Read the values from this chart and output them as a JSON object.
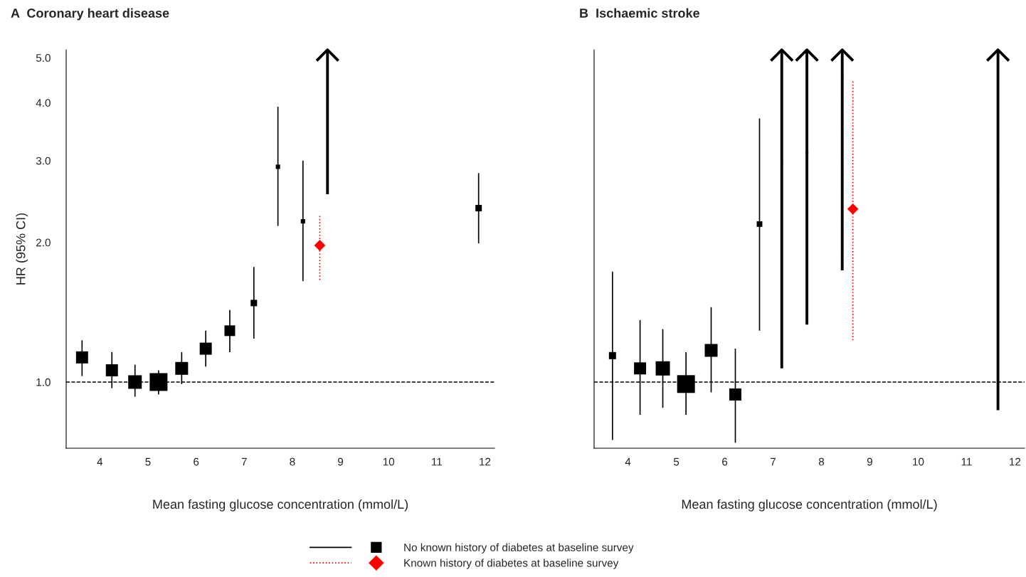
{
  "chart_data": [
    {
      "type": "scatter",
      "title": "A  Coronary heart disease",
      "xlabel": "Mean fasting glucose concentration (mmol/L)",
      "ylabel": "HR (95% CI)",
      "log": "y",
      "xlim": [
        3.3,
        12.2
      ],
      "xticks": [
        4,
        5,
        6,
        7,
        8,
        9,
        10,
        11,
        12
      ],
      "ylim": [
        0.72,
        5.2
      ],
      "yticks": [
        {
          "value": 1,
          "label": "1.0"
        },
        {
          "value": 2,
          "label": "2.0"
        },
        {
          "value": 3,
          "label": "3.0"
        },
        {
          "value": 4,
          "label": "4.0"
        },
        {
          "value": 5,
          "label": "5.0"
        }
      ],
      "grid": false,
      "legend": "bottom",
      "ref_lines": [
        {
          "axis": "y",
          "value": 1,
          "color": "#000000",
          "line_style": "dashed"
        }
      ],
      "series": [
        {
          "name": "No known history of diabetes at baseline survey",
          "type": "bubble",
          "marker": "square",
          "line_style": "solid",
          "color": "#000000",
          "x": [
            3.63,
            4.25,
            4.73,
            5.22,
            5.7,
            6.2,
            6.7,
            7.2,
            7.7,
            8.22,
            8.73,
            11.87
          ],
          "values": [
            1.13,
            1.06,
            1.0,
            1.0,
            1.07,
            1.18,
            1.29,
            1.48,
            2.91,
            2.22,
            3.89,
            2.37
          ],
          "sizes": [
            0.46,
            0.46,
            0.58,
            1,
            0.52,
            0.46,
            0.36,
            0.13,
            0.06,
            0.06,
            0.014,
            0.13
          ],
          "errors": [
            [
              1.03,
              1.23
            ],
            [
              0.97,
              1.16
            ],
            [
              0.93,
              1.09
            ],
            [
              0.94,
              1.06
            ],
            [
              0.99,
              1.16
            ],
            [
              1.08,
              1.29
            ],
            [
              1.16,
              1.43
            ],
            [
              1.24,
              1.77
            ],
            [
              2.17,
              3.92
            ],
            [
              1.65,
              3.0
            ],
            [
              2.54,
              5.2
            ],
            [
              1.99,
              2.82
            ]
          ]
        },
        {
          "name": "Known history of diabetes at baseline survey",
          "type": "scatter",
          "marker": "diamond",
          "line_style": "dotted",
          "color": "#ff0000",
          "x": [
            8.57
          ],
          "values": [
            1.97
          ],
          "errors": [
            [
              1.66,
              2.3
            ]
          ]
        }
      ]
    },
    {
      "type": "scatter",
      "title": "B  Ischaemic stroke",
      "xlabel": "Mean fasting glucose concentration (mmol/L)",
      "log": "y",
      "xlim": [
        3.3,
        12.2
      ],
      "xticks": [
        4,
        5,
        6,
        7,
        8,
        9,
        10,
        11,
        12
      ],
      "ylim": [
        0.72,
        5.2
      ],
      "yticks": [
        {
          "value": 1,
          "label": null
        },
        {
          "value": 2,
          "label": null
        },
        {
          "value": 3,
          "label": null
        },
        {
          "value": 4,
          "label": null
        },
        {
          "value": 5,
          "label": null
        }
      ],
      "tick_labels": "x",
      "grid": false,
      "ref_lines": [
        {
          "axis": "y",
          "value": 1,
          "color": "#000000",
          "line_style": "dashed"
        }
      ],
      "series": [
        {
          "type": "bubble",
          "marker": "square",
          "line_style": "solid",
          "color": "#000000",
          "x": [
            3.68,
            4.25,
            4.72,
            5.2,
            5.72,
            6.22,
            6.72,
            7.18,
            7.7,
            8.43,
            11.65
          ],
          "values": [
            1.14,
            1.07,
            1.07,
            0.99,
            1.17,
            0.94,
            2.19,
            2.99,
            3.12,
            4.53,
            2.59
          ],
          "sizes": [
            0.16,
            0.46,
            0.64,
            1,
            0.52,
            0.46,
            0.1,
            0.014,
            0.026,
            0.014,
            0.014
          ],
          "errors": [
            [
              0.75,
              1.73
            ],
            [
              0.85,
              1.36
            ],
            [
              0.88,
              1.3
            ],
            [
              0.85,
              1.16
            ],
            [
              0.95,
              1.45
            ],
            [
              0.74,
              1.18
            ],
            [
              1.29,
              3.7
            ],
            [
              1.07,
              5.2
            ],
            [
              1.33,
              5.2
            ],
            [
              1.74,
              5.2
            ],
            [
              0.87,
              5.2
            ]
          ]
        },
        {
          "type": "scatter",
          "marker": "diamond",
          "line_style": "dotted",
          "color": "#ff0000",
          "x": [
            8.65
          ],
          "values": [
            2.36
          ],
          "errors": [
            [
              1.23,
              4.46
            ]
          ]
        }
      ]
    }
  ]
}
